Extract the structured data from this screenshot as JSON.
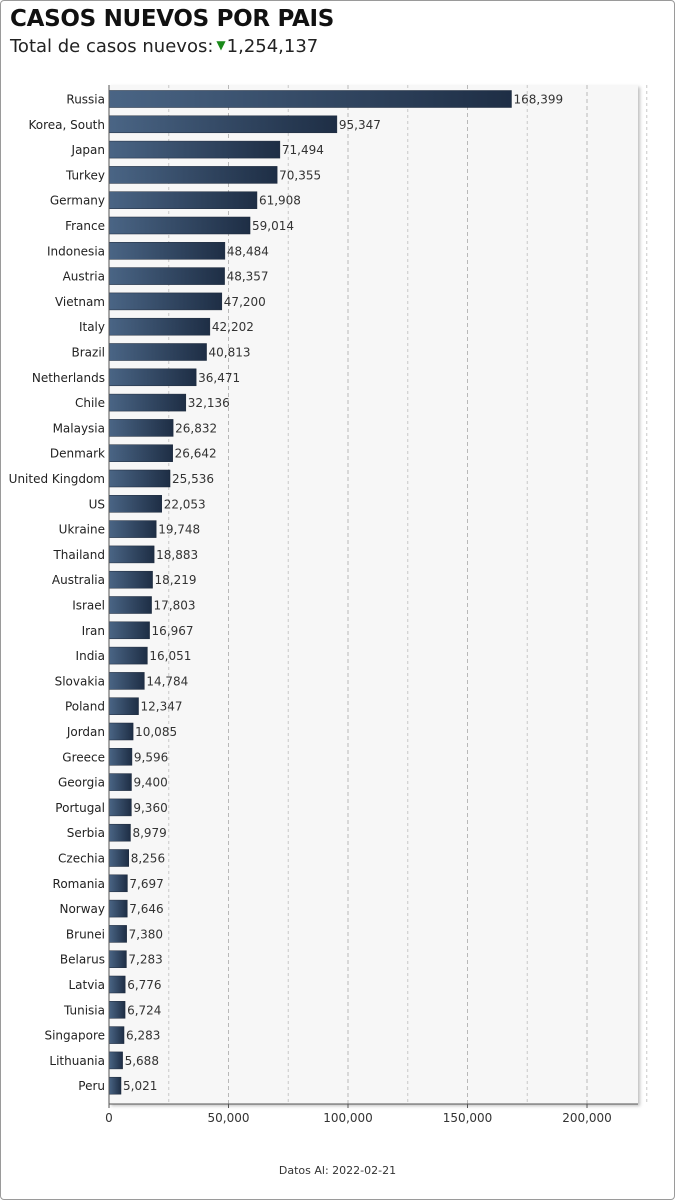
{
  "header": {
    "title": "CASOS NUEVOS POR PAIS",
    "subtitle_label": "Total de casos nuevos:",
    "subtitle_value": "1,254,137"
  },
  "footer": {
    "text": "Datos Al: 2022-02-21"
  },
  "colors": {
    "bar_dark": "#1e2e45",
    "bar_light": "#4a6585",
    "indicator": "#1a8a1a",
    "plot_bg": "#f7f7f7"
  },
  "chart_data": {
    "type": "bar",
    "orientation": "horizontal",
    "title": "CASOS NUEVOS POR PAIS",
    "xlim": [
      0,
      225000
    ],
    "xticks": [
      0,
      50000,
      100000,
      150000,
      200000
    ],
    "xtick_labels": [
      "0",
      "50,000",
      "100,000",
      "150,000",
      "200,000"
    ],
    "grid": true,
    "categories": [
      "Russia",
      "Korea, South",
      "Japan",
      "Turkey",
      "Germany",
      "France",
      "Indonesia",
      "Austria",
      "Vietnam",
      "Italy",
      "Brazil",
      "Netherlands",
      "Chile",
      "Malaysia",
      "Denmark",
      "United Kingdom",
      "US",
      "Ukraine",
      "Thailand",
      "Australia",
      "Israel",
      "Iran",
      "India",
      "Slovakia",
      "Poland",
      "Jordan",
      "Greece",
      "Georgia",
      "Portugal",
      "Serbia",
      "Czechia",
      "Romania",
      "Norway",
      "Brunei",
      "Belarus",
      "Latvia",
      "Tunisia",
      "Singapore",
      "Lithuania",
      "Peru"
    ],
    "values": [
      168399,
      95347,
      71494,
      70355,
      61908,
      59014,
      48484,
      48357,
      47200,
      42202,
      40813,
      36471,
      32136,
      26832,
      26642,
      25536,
      22053,
      19748,
      18883,
      18219,
      17803,
      16967,
      16051,
      14784,
      12347,
      10085,
      9596,
      9400,
      9360,
      8979,
      8256,
      7697,
      7646,
      7380,
      7283,
      6776,
      6724,
      6283,
      5688,
      5021
    ],
    "value_labels": [
      "168,399",
      "95,347",
      "71,494",
      "70,355",
      "61,908",
      "59,014",
      "48,484",
      "48,357",
      "47,200",
      "42,202",
      "40,813",
      "36,471",
      "32,136",
      "26,832",
      "26,642",
      "25,536",
      "22,053",
      "19,748",
      "18,883",
      "18,219",
      "17,803",
      "16,967",
      "16,051",
      "14,784",
      "12,347",
      "10,085",
      "9,596",
      "9,400",
      "9,360",
      "8,979",
      "8,256",
      "7,697",
      "7,646",
      "7,380",
      "7,283",
      "6,776",
      "6,724",
      "6,283",
      "5,688",
      "5,021"
    ]
  }
}
